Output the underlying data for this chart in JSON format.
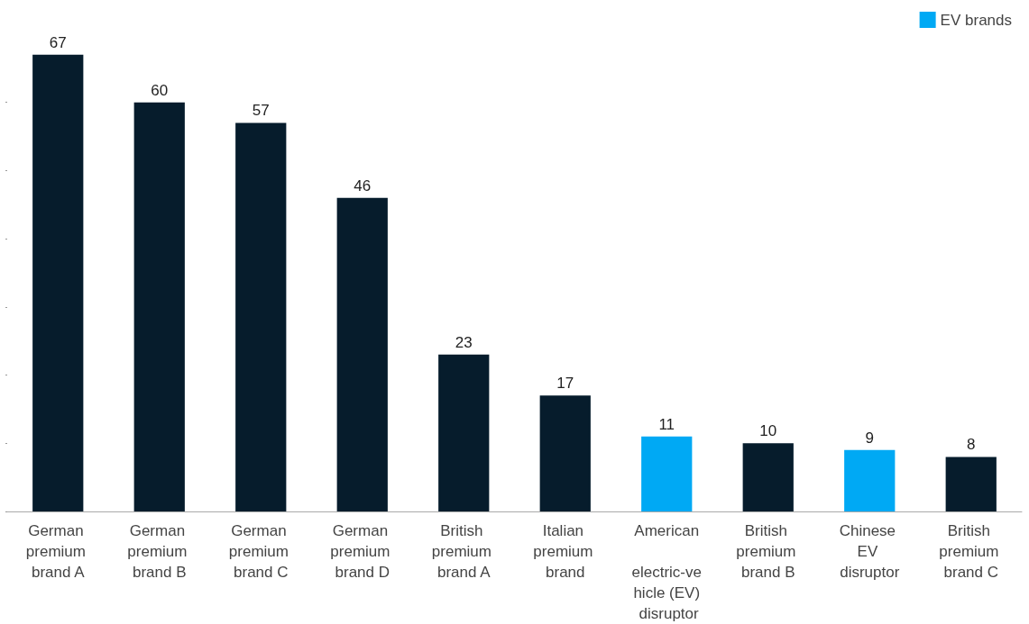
{
  "chart_data": {
    "type": "bar",
    "categories": [
      "German premium brand A",
      "German premium brand B",
      "German premium brand C",
      "German premium brand D",
      "British premium brand A",
      "Italian premium brand",
      "American electric-vehicle (EV) disruptor",
      "British premium brand B",
      "Chinese EV disruptor",
      "British premium brand C"
    ],
    "series": [
      {
        "color": "#061c2c",
        "values": [
          67,
          60,
          57,
          46,
          23,
          17,
          null,
          10,
          null,
          8
        ]
      },
      {
        "name": "EV brands",
        "color": "#00a9f4",
        "values": [
          null,
          null,
          null,
          null,
          null,
          null,
          11,
          null,
          9,
          null
        ]
      }
    ],
    "stacked": true,
    "yticks": [
      0,
      {
        "value": 10,
        "label": null
      },
      {
        "value": 20,
        "label": null
      },
      {
        "value": 30,
        "label": null
      },
      {
        "value": 40,
        "label": null
      },
      {
        "value": 50,
        "label": null
      },
      {
        "value": 60,
        "label": null
      }
    ],
    "tick_labels": "x",
    "data_labels": true,
    "legend": "top right",
    "grid": false
  }
}
